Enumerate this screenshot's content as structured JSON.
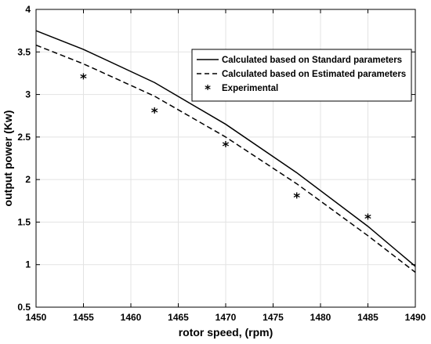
{
  "chart_data": {
    "type": "line",
    "xlabel": "rotor speed, (rpm)",
    "ylabel": "output power (Kw)",
    "xlim": [
      1450,
      1490
    ],
    "ylim": [
      0.5,
      4
    ],
    "xticks": [
      1450,
      1455,
      1460,
      1465,
      1470,
      1475,
      1480,
      1485,
      1490
    ],
    "yticks": [
      0.5,
      1,
      1.5,
      2,
      2.5,
      3,
      3.5,
      4
    ],
    "grid": true,
    "legend_position": "top-right",
    "series": [
      {
        "name": "Calculated based on Standard parameters",
        "style": "solid",
        "color": "#000000",
        "x": [
          1450,
          1455,
          1462.5,
          1470,
          1477.5,
          1485,
          1490
        ],
        "y": [
          3.75,
          3.53,
          3.14,
          2.65,
          2.08,
          1.45,
          0.98
        ]
      },
      {
        "name": "Calculated based on Estimated parameters",
        "style": "dashed",
        "color": "#000000",
        "x": [
          1450,
          1455,
          1462.5,
          1470,
          1477.5,
          1485,
          1490
        ],
        "y": [
          3.58,
          3.36,
          2.98,
          2.5,
          1.95,
          1.34,
          0.91
        ]
      },
      {
        "name": "Experimental",
        "style": "marker",
        "marker": "asterisk",
        "color": "#000000",
        "x": [
          1455,
          1462.5,
          1470,
          1477.5,
          1485
        ],
        "y": [
          3.2,
          2.8,
          2.4,
          1.8,
          1.55
        ]
      }
    ]
  }
}
